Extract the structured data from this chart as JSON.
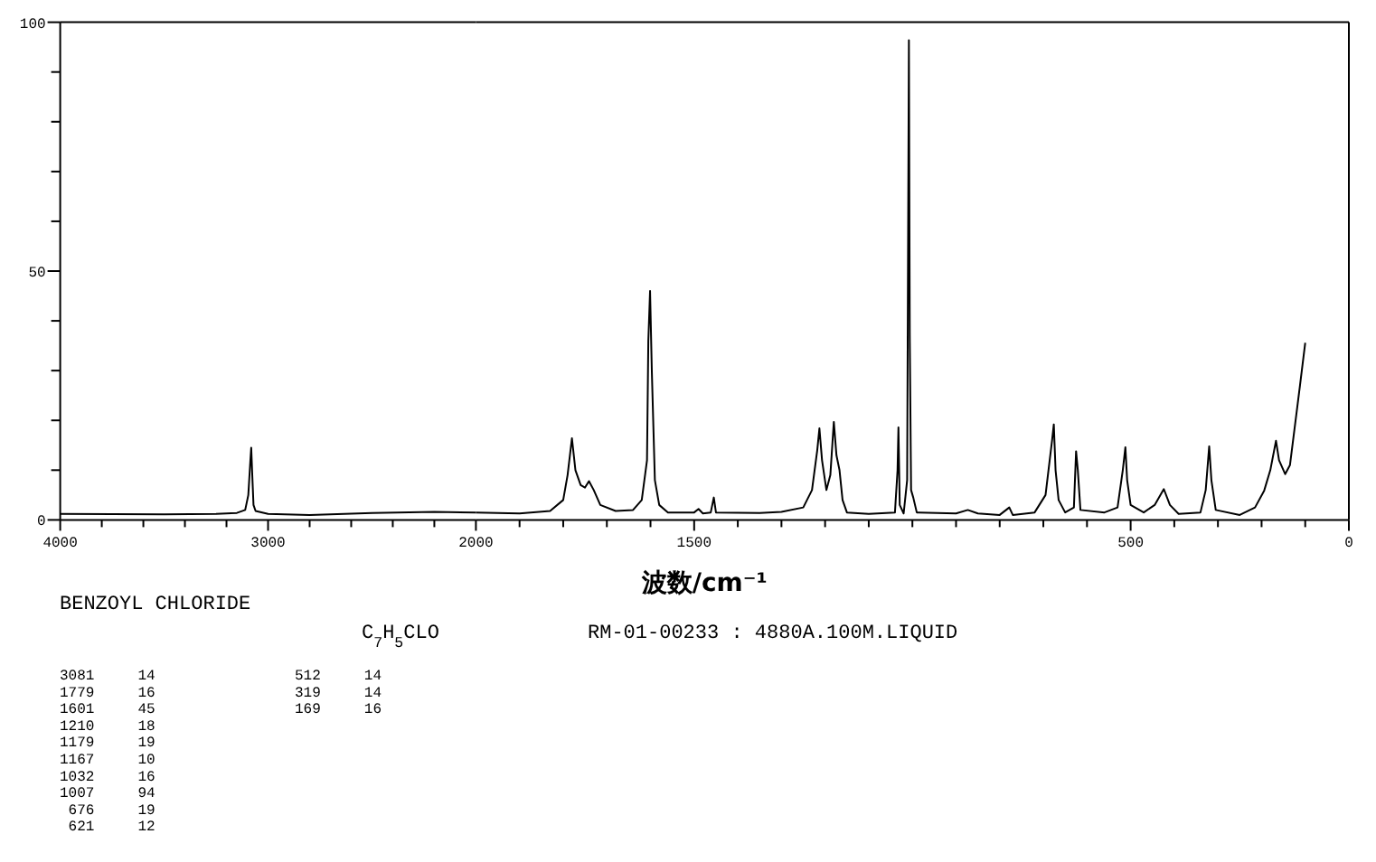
{
  "chart_data": [
    {
      "type": "line",
      "xlim": [
        4000,
        2000
      ],
      "ylim": [
        0,
        100
      ],
      "tick_labels": true,
      "xticks": [
        4000,
        {
          "value": 3800,
          "label": null
        },
        {
          "value": 3600,
          "label": null
        },
        {
          "value": 3400,
          "label": null
        },
        {
          "value": 3200,
          "label": null
        },
        3000,
        {
          "value": 2800,
          "label": null
        },
        {
          "value": 2600,
          "label": null
        },
        {
          "value": 2400,
          "label": null
        },
        {
          "value": 2200,
          "label": null
        }
      ],
      "yticks": [
        0,
        {
          "value": 10,
          "label": null
        },
        {
          "value": 20,
          "label": null
        },
        {
          "value": 30,
          "label": null
        },
        {
          "value": 40,
          "label": null
        },
        50,
        {
          "value": 60,
          "label": null
        },
        {
          "value": 70,
          "label": null
        },
        {
          "value": 80,
          "label": null
        },
        {
          "value": 90,
          "label": null
        },
        100
      ],
      "series": [
        {
          "color": "#000000",
          "x": [
            4000,
            3500,
            3250,
            3150,
            3110,
            3095,
            3085,
            3081,
            3076,
            3070,
            3060,
            3000,
            2800,
            2500,
            2200,
            2000
          ],
          "values": [
            1.2,
            1.1,
            1.2,
            1.4,
            2.0,
            5,
            12,
            14.5,
            9,
            3,
            1.8,
            1.2,
            1.0,
            1.4,
            1.6,
            1.5
          ]
        }
      ],
      "annotations": [
        "BENZOYL CHLORIDE",
        "C$_{7}$H$_{5}$CLO",
        "RM-01-00233 : 4880A.100M.LIQUID",
        "3081     14",
        "1779     16",
        "1601     45",
        "1210     18",
        "1179     19",
        "1167     10",
        "1032     16",
        "1007     94",
        " 676     19",
        " 621     12",
        "512     14",
        "319     14",
        "169     16"
      ]
    },
    {
      "type": "line",
      "xlabel": "波数/cm⁻¹",
      "xlim": [
        2000,
        0
      ],
      "ylim": [
        0,
        100
      ],
      "tick_labels": "x",
      "xticks": [
        2000,
        {
          "value": 1900,
          "label": null
        },
        {
          "value": 1800,
          "label": null
        },
        {
          "value": 1700,
          "label": null
        },
        {
          "value": 1600,
          "label": null
        },
        1500,
        {
          "value": 1400,
          "label": null
        },
        {
          "value": 1300,
          "label": null
        },
        {
          "value": 1200,
          "label": null
        },
        {
          "value": 1100,
          "label": null
        },
        {
          "value": 1000,
          "label": null
        },
        {
          "value": 900,
          "label": null
        },
        {
          "value": 800,
          "label": null
        },
        {
          "value": 700,
          "label": null
        },
        {
          "value": 600,
          "label": null
        },
        500,
        {
          "value": 400,
          "label": null
        },
        {
          "value": 300,
          "label": null
        },
        {
          "value": 200,
          "label": null
        },
        {
          "value": 100,
          "label": null
        },
        0
      ],
      "series": [
        {
          "color": "#000000",
          "x": [
            2000,
            1900,
            1830,
            1800,
            1790,
            1780,
            1772,
            1760,
            1750,
            1741,
            1730,
            1715,
            1680,
            1640,
            1620,
            1608,
            1605,
            1601,
            1597,
            1590,
            1580,
            1560,
            1500,
            1490,
            1480,
            1462,
            1455,
            1450,
            1350,
            1300,
            1250,
            1230,
            1218,
            1213,
            1207,
            1197,
            1188,
            1180,
            1174,
            1167,
            1160,
            1150,
            1100,
            1040,
            1034,
            1032,
            1029,
            1020,
            1012,
            1008,
            1006,
            1003,
            998,
            990,
            900,
            873,
            850,
            800,
            778,
            770,
            720,
            695,
            680,
            676,
            672,
            665,
            650,
            630,
            625,
            621,
            615,
            560,
            530,
            518,
            512,
            508,
            500,
            470,
            445,
            424,
            410,
            390,
            340,
            328,
            320,
            315,
            305,
            250,
            215,
            194,
            180,
            167,
            160,
            146,
            135,
            125,
            112,
            100
          ],
          "values": [
            1.5,
            1.3,
            1.8,
            4,
            9,
            16.4,
            10,
            7,
            6.5,
            7.8,
            6,
            3,
            1.8,
            2,
            4,
            12,
            36,
            46,
            30,
            8,
            3,
            1.5,
            1.5,
            2.2,
            1.3,
            1.5,
            4.5,
            1.5,
            1.4,
            1.6,
            2.5,
            6,
            14,
            18.4,
            12,
            6,
            9,
            19.7,
            13,
            10,
            4,
            1.5,
            1.2,
            1.5,
            10,
            18.6,
            3,
            1.3,
            8,
            96.4,
            37,
            6,
            4.5,
            1.5,
            1.3,
            2.0,
            1.3,
            1.0,
            2.5,
            1.0,
            1.5,
            5,
            16,
            19.2,
            10,
            4,
            1.5,
            2.5,
            13.8,
            10,
            2,
            1.5,
            2.5,
            10,
            14.6,
            8,
            3,
            1.5,
            3,
            6.2,
            3,
            1.2,
            1.5,
            6,
            14.8,
            8,
            2,
            1.0,
            2.5,
            5.9,
            10,
            15.9,
            12,
            9.2,
            11,
            18,
            27,
            35.6
          ]
        }
      ]
    }
  ]
}
